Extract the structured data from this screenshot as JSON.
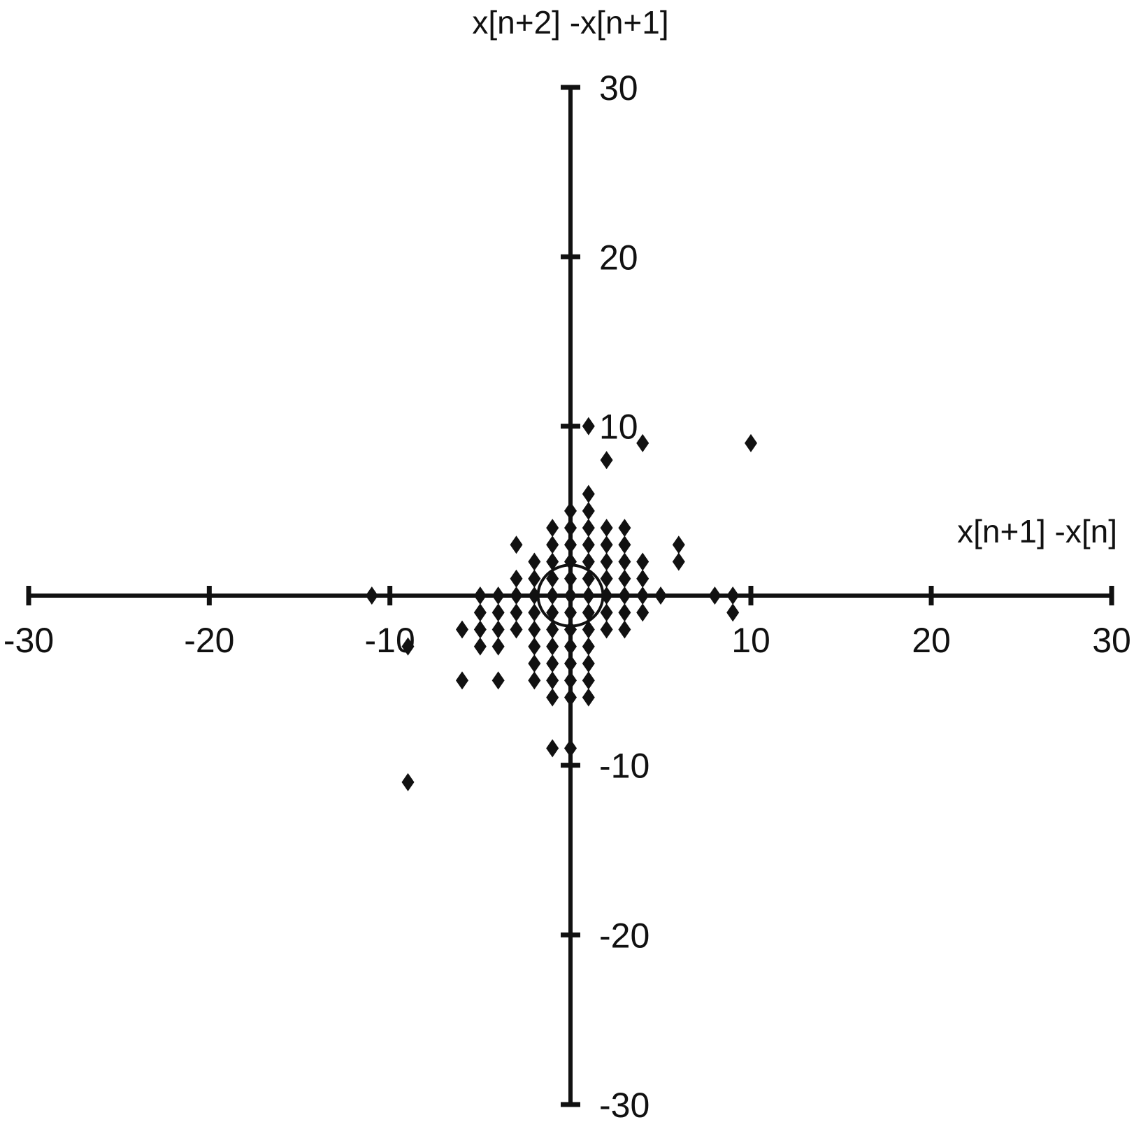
{
  "chart_data": {
    "type": "scatter",
    "title": "",
    "xlabel": "x[n+1] -x[n]",
    "ylabel": "x[n+2] -x[n+1]",
    "xlim": [
      -30,
      30
    ],
    "ylim": [
      -30,
      30
    ],
    "xticks": [
      -30,
      -20,
      -10,
      10,
      20,
      30
    ],
    "yticks": [
      30,
      20,
      10,
      -10,
      -20,
      -30
    ],
    "grid": false,
    "marker": "diamond",
    "color": "#111111",
    "circle_annotation": {
      "center": [
        0,
        0
      ],
      "radius": 1.8
    },
    "points": [
      [
        -6,
        -2
      ],
      [
        -6,
        -5
      ],
      [
        -5,
        0
      ],
      [
        -5,
        -1
      ],
      [
        -5,
        -2
      ],
      [
        -5,
        -3
      ],
      [
        -4,
        0
      ],
      [
        -4,
        -1
      ],
      [
        -4,
        -2
      ],
      [
        -4,
        -3
      ],
      [
        -4,
        -5
      ],
      [
        -3,
        3
      ],
      [
        -3,
        1
      ],
      [
        -3,
        0
      ],
      [
        -3,
        -1
      ],
      [
        -3,
        -2
      ],
      [
        -2,
        2
      ],
      [
        -2,
        1
      ],
      [
        -2,
        0
      ],
      [
        -2,
        -1
      ],
      [
        -2,
        -2
      ],
      [
        -2,
        -3
      ],
      [
        -2,
        -4
      ],
      [
        -2,
        -5
      ],
      [
        -1,
        4
      ],
      [
        -1,
        3
      ],
      [
        -1,
        2
      ],
      [
        -1,
        1
      ],
      [
        -1,
        0
      ],
      [
        -1,
        -1
      ],
      [
        -1,
        -2
      ],
      [
        -1,
        -3
      ],
      [
        -1,
        -4
      ],
      [
        -1,
        -5
      ],
      [
        -1,
        -6
      ],
      [
        0,
        5
      ],
      [
        0,
        4
      ],
      [
        0,
        3
      ],
      [
        0,
        2
      ],
      [
        0,
        1
      ],
      [
        0,
        0
      ],
      [
        0,
        -1
      ],
      [
        0,
        -2
      ],
      [
        0,
        -3
      ],
      [
        0,
        -4
      ],
      [
        0,
        -5
      ],
      [
        0,
        -6
      ],
      [
        1,
        6
      ],
      [
        1,
        5
      ],
      [
        1,
        4
      ],
      [
        1,
        3
      ],
      [
        1,
        2
      ],
      [
        1,
        1
      ],
      [
        1,
        0
      ],
      [
        1,
        -1
      ],
      [
        1,
        -2
      ],
      [
        1,
        -3
      ],
      [
        1,
        -4
      ],
      [
        1,
        -5
      ],
      [
        1,
        -6
      ],
      [
        2,
        4
      ],
      [
        2,
        3
      ],
      [
        2,
        2
      ],
      [
        2,
        1
      ],
      [
        2,
        0
      ],
      [
        2,
        -1
      ],
      [
        2,
        -2
      ],
      [
        3,
        4
      ],
      [
        3,
        3
      ],
      [
        3,
        2
      ],
      [
        3,
        1
      ],
      [
        3,
        0
      ],
      [
        3,
        -1
      ],
      [
        3,
        -2
      ],
      [
        4,
        2
      ],
      [
        4,
        1
      ],
      [
        4,
        0
      ],
      [
        4,
        -1
      ],
      [
        5,
        0
      ],
      [
        6,
        3
      ],
      [
        6,
        2
      ],
      [
        8,
        0
      ],
      [
        9,
        0
      ],
      [
        9,
        -1
      ],
      [
        1,
        10
      ],
      [
        4,
        9
      ],
      [
        10,
        9
      ],
      [
        2,
        8
      ],
      [
        -11,
        0
      ],
      [
        -9,
        -3
      ],
      [
        -9,
        -11
      ],
      [
        -1,
        -9
      ],
      [
        0,
        -9
      ]
    ]
  }
}
